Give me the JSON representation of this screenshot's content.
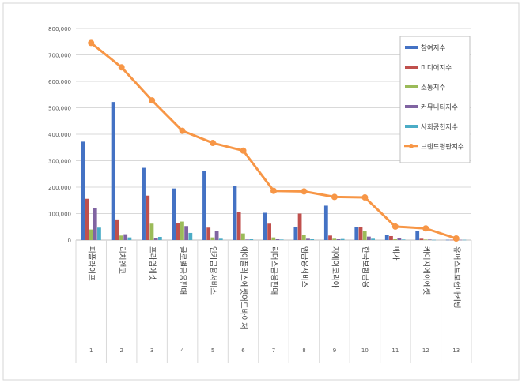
{
  "chart_data": {
    "type": "bar",
    "title": "",
    "xlabel": "",
    "ylabel": "",
    "ylim": [
      0,
      800000
    ],
    "y_ticks": [
      "0",
      "100,000",
      "200,000",
      "300,000",
      "400,000",
      "500,000",
      "600,000",
      "700,000",
      "800,000"
    ],
    "categories": [
      "피플라이프",
      "리치앤코",
      "프라임에셋",
      "글로벌금융판매",
      "인카금융서비스",
      "에이플러스에셋어드바이저",
      "리더스금융판매",
      "엠금융서비스",
      "지에이코리아",
      "한국보험금융",
      "메가",
      "케이지에이에셋",
      "유퍼스트보험마케팅"
    ],
    "category_numbers": [
      "1",
      "2",
      "3",
      "4",
      "5",
      "6",
      "7",
      "8",
      "9",
      "10",
      "11",
      "12",
      "13"
    ],
    "series": [
      {
        "name": "참여지수",
        "kind": "bar",
        "color": "#4472C4",
        "values": [
          372000,
          522000,
          273000,
          195000,
          262000,
          205000,
          103000,
          50000,
          130000,
          50000,
          20000,
          35000,
          1000
        ]
      },
      {
        "name": "미디어지수",
        "kind": "bar",
        "color": "#C0504D",
        "values": [
          156000,
          78000,
          168000,
          65000,
          47000,
          105000,
          62000,
          100000,
          17000,
          48000,
          15000,
          5000,
          1000
        ]
      },
      {
        "name": "소통지수",
        "kind": "bar",
        "color": "#9BBB59",
        "values": [
          40000,
          17000,
          62000,
          70000,
          10000,
          25000,
          10000,
          20000,
          5000,
          35000,
          3000,
          2000,
          1000
        ]
      },
      {
        "name": "커뮤니티지수",
        "kind": "bar",
        "color": "#8064A2",
        "values": [
          122000,
          22000,
          8000,
          53000,
          33000,
          2000,
          3000,
          5000,
          3000,
          13000,
          8000,
          2000,
          1000
        ]
      },
      {
        "name": "사회공헌지수",
        "kind": "bar",
        "color": "#4BACC6",
        "values": [
          47000,
          10000,
          12000,
          27000,
          5000,
          3000,
          2000,
          3000,
          4000,
          5000,
          2000,
          1000,
          1000
        ]
      },
      {
        "name": "브랜드평판지수",
        "kind": "line",
        "color": "#F79646",
        "values": [
          745000,
          653000,
          528000,
          413000,
          367000,
          338000,
          186000,
          184000,
          163000,
          161000,
          51000,
          44000,
          6000
        ]
      }
    ]
  }
}
